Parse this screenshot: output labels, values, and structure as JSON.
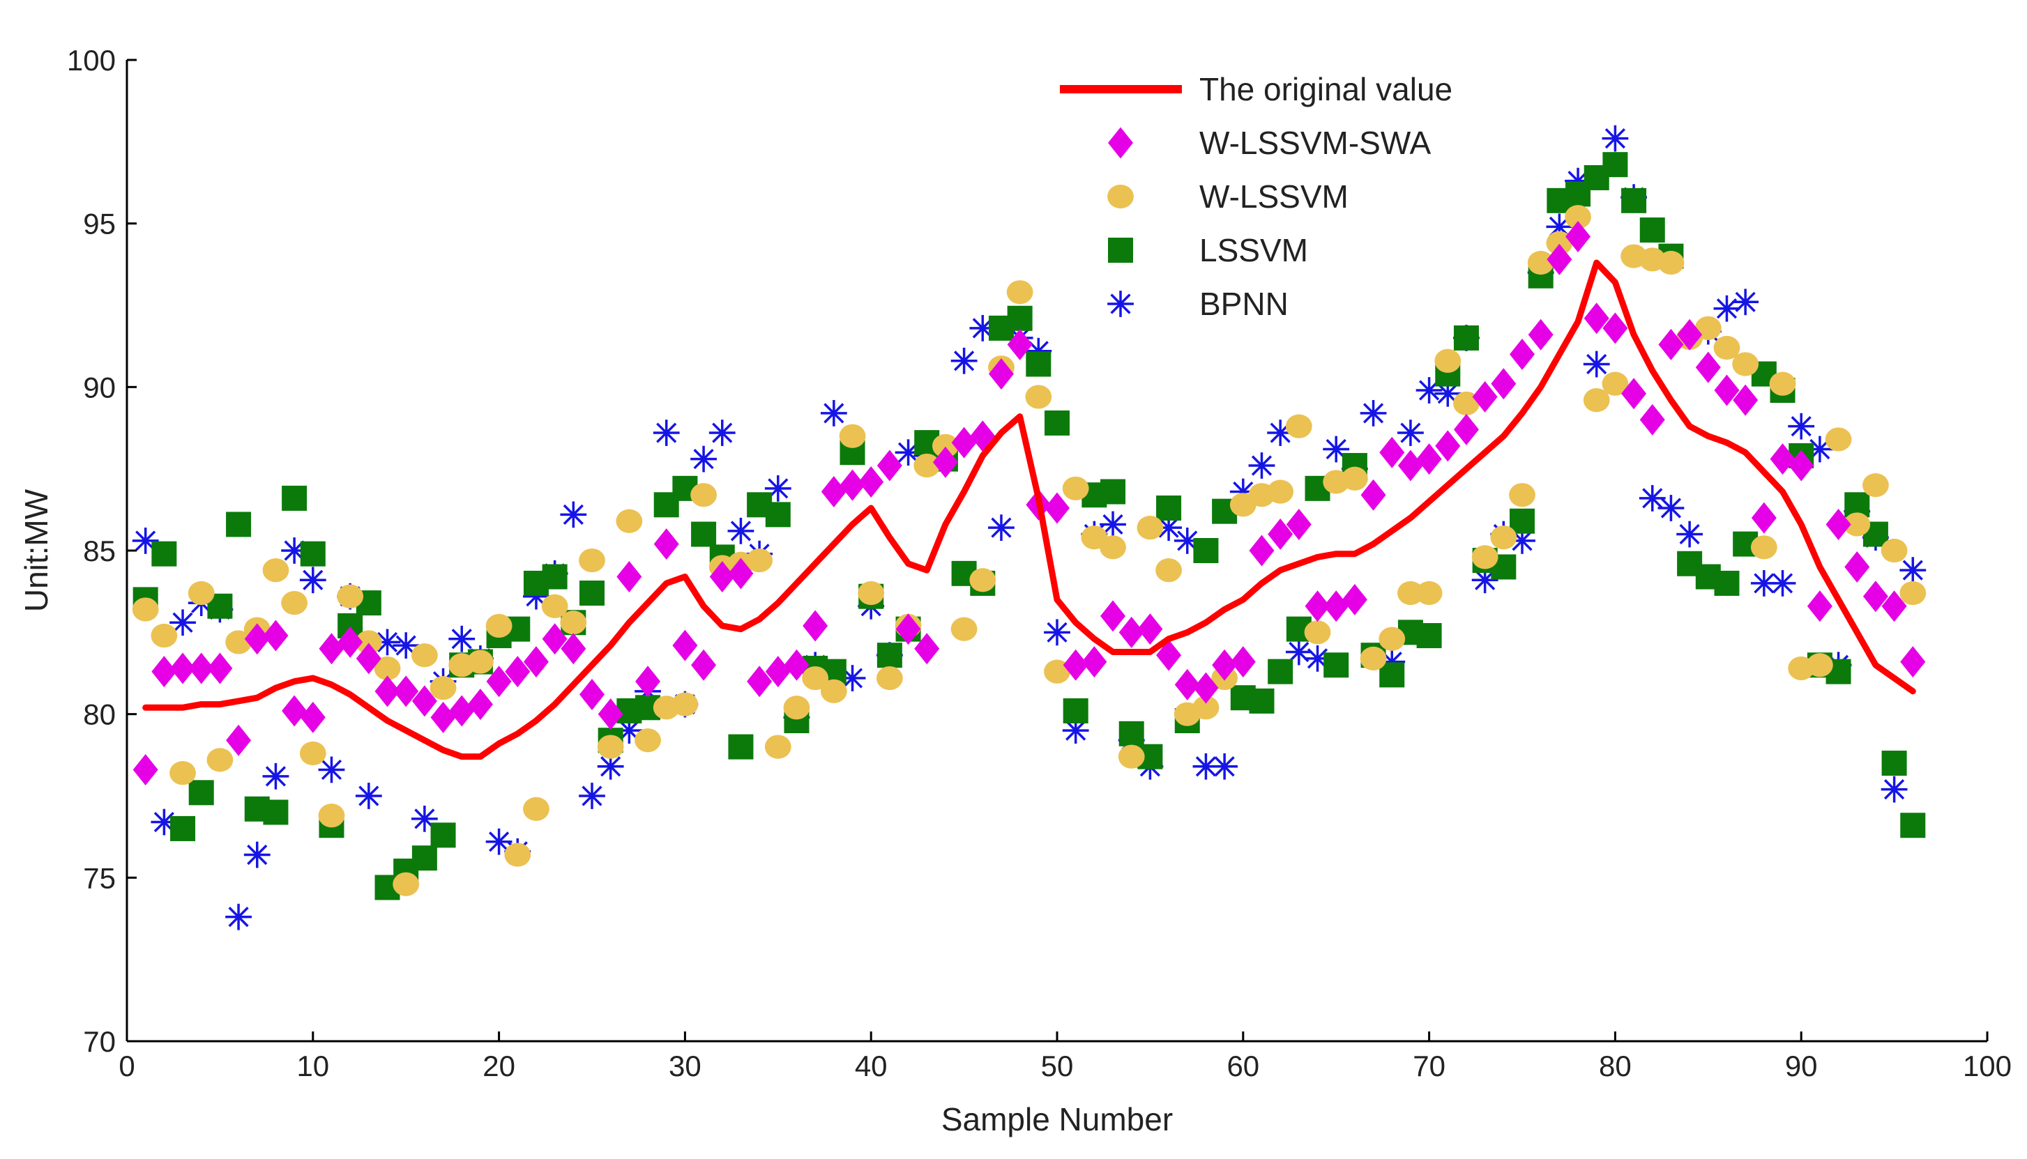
{
  "chart_data": {
    "type": "line+scatter",
    "title": "",
    "xlabel": "Sample Number",
    "ylabel": "Unit:MW",
    "xlim": [
      0,
      100
    ],
    "ylim": [
      70,
      100
    ],
    "xticks": [
      0,
      10,
      20,
      30,
      40,
      50,
      60,
      70,
      80,
      90,
      100
    ],
    "yticks": [
      70,
      75,
      80,
      85,
      90,
      95,
      100
    ],
    "legend_position": "top-center",
    "series": [
      {
        "name": "The original value",
        "style": "line",
        "color": "#ff0000",
        "x": [
          1,
          2,
          3,
          4,
          5,
          6,
          7,
          8,
          9,
          10,
          11,
          12,
          13,
          14,
          15,
          16,
          17,
          18,
          19,
          20,
          21,
          22,
          23,
          24,
          25,
          26,
          27,
          28,
          29,
          30,
          31,
          32,
          33,
          34,
          35,
          36,
          37,
          38,
          39,
          40,
          41,
          42,
          43,
          44,
          45,
          46,
          47,
          48,
          49,
          50,
          51,
          52,
          53,
          54,
          55,
          56,
          57,
          58,
          59,
          60,
          61,
          62,
          63,
          64,
          65,
          66,
          67,
          68,
          69,
          70,
          71,
          72,
          73,
          74,
          75,
          76,
          77,
          78,
          79,
          80,
          81,
          82,
          83,
          84,
          85,
          86,
          87,
          88,
          89,
          90,
          91,
          92,
          93,
          94,
          95,
          96
        ],
        "y": [
          80.2,
          80.2,
          80.2,
          80.3,
          80.3,
          80.4,
          80.5,
          80.8,
          81.0,
          81.1,
          80.9,
          80.6,
          80.2,
          79.8,
          79.5,
          79.2,
          78.9,
          78.7,
          78.7,
          79.1,
          79.4,
          79.8,
          80.3,
          80.9,
          81.5,
          82.1,
          82.8,
          83.4,
          84.0,
          84.2,
          83.3,
          82.7,
          82.6,
          82.9,
          83.4,
          84.0,
          84.6,
          85.2,
          85.8,
          86.3,
          85.4,
          84.6,
          84.4,
          85.8,
          86.8,
          87.9,
          88.6,
          89.1,
          86.6,
          83.5,
          82.8,
          82.3,
          81.9,
          81.9,
          81.9,
          82.3,
          82.5,
          82.8,
          83.2,
          83.5,
          84.0,
          84.4,
          84.6,
          84.8,
          84.9,
          84.9,
          85.2,
          85.6,
          86.0,
          86.5,
          87.0,
          87.5,
          88.0,
          88.5,
          89.2,
          90.0,
          91.0,
          92.0,
          93.8,
          93.2,
          91.6,
          90.5,
          89.6,
          88.8,
          88.5,
          88.3,
          88.0,
          87.4,
          86.8,
          85.8,
          84.5,
          83.5,
          82.5,
          81.5,
          81.1,
          80.7
        ]
      },
      {
        "name": "W-LSSVM-SWA",
        "style": "diamond",
        "color": "#e600e6",
        "x": [
          1,
          2,
          3,
          4,
          5,
          6,
          7,
          8,
          9,
          10,
          11,
          12,
          13,
          14,
          15,
          16,
          17,
          18,
          19,
          20,
          21,
          22,
          23,
          24,
          25,
          26,
          27,
          28,
          29,
          30,
          31,
          32,
          33,
          34,
          35,
          36,
          37,
          38,
          39,
          40,
          41,
          42,
          43,
          44,
          45,
          46,
          47,
          48,
          49,
          50,
          51,
          52,
          53,
          54,
          55,
          56,
          57,
          58,
          59,
          60,
          61,
          62,
          63,
          64,
          65,
          66,
          67,
          68,
          69,
          70,
          71,
          72,
          73,
          74,
          75,
          76,
          77,
          78,
          79,
          80,
          81,
          82,
          83,
          84,
          85,
          86,
          87,
          88,
          89,
          90,
          91,
          92,
          93,
          94,
          95,
          96
        ],
        "y": [
          78.3,
          81.3,
          81.4,
          81.4,
          81.4,
          79.2,
          82.3,
          82.4,
          80.1,
          79.9,
          82.0,
          82.2,
          81.7,
          80.7,
          80.7,
          80.4,
          79.9,
          80.1,
          80.3,
          81.0,
          81.3,
          81.6,
          82.3,
          82.0,
          80.6,
          80.0,
          84.2,
          81.0,
          85.2,
          82.1,
          81.5,
          84.2,
          84.3,
          81.0,
          81.3,
          81.5,
          82.7,
          86.8,
          87.0,
          87.1,
          87.6,
          82.6,
          82.0,
          87.7,
          88.3,
          88.5,
          90.4,
          91.3,
          86.4,
          86.3,
          81.5,
          81.6,
          83.0,
          82.5,
          82.6,
          81.8,
          80.9,
          80.8,
          81.5,
          81.6,
          85.0,
          85.5,
          85.8,
          83.3,
          83.3,
          83.5,
          86.7,
          88.0,
          87.6,
          87.8,
          88.2,
          88.7,
          89.7,
          90.1,
          91.0,
          91.6,
          93.9,
          94.6,
          92.1,
          91.8,
          89.8,
          89.0,
          91.3,
          91.6,
          90.6,
          89.9,
          89.6,
          86.0,
          87.8,
          87.6,
          83.3,
          85.8,
          84.5,
          83.6,
          83.3,
          81.6
        ]
      },
      {
        "name": "W-LSSVM",
        "style": "circle",
        "color": "#ebc152",
        "x": [
          1,
          2,
          3,
          4,
          5,
          6,
          7,
          8,
          9,
          10,
          11,
          12,
          13,
          14,
          15,
          16,
          17,
          18,
          19,
          20,
          21,
          22,
          23,
          24,
          25,
          26,
          27,
          28,
          29,
          30,
          31,
          32,
          33,
          34,
          35,
          36,
          37,
          38,
          39,
          40,
          41,
          42,
          43,
          44,
          45,
          46,
          47,
          48,
          49,
          50,
          51,
          52,
          53,
          54,
          55,
          56,
          57,
          58,
          59,
          60,
          61,
          62,
          63,
          64,
          65,
          66,
          67,
          68,
          69,
          70,
          71,
          72,
          73,
          74,
          75,
          76,
          77,
          78,
          79,
          80,
          81,
          82,
          83,
          84,
          85,
          86,
          87,
          88,
          89,
          90,
          91,
          92,
          93,
          94,
          95,
          96
        ],
        "y": [
          83.2,
          82.4,
          78.2,
          83.7,
          78.6,
          82.2,
          82.6,
          84.4,
          83.4,
          78.8,
          76.9,
          83.6,
          82.2,
          81.4,
          74.8,
          81.8,
          80.8,
          81.5,
          81.6,
          82.7,
          75.7,
          77.1,
          83.3,
          82.8,
          84.7,
          79.0,
          85.9,
          79.2,
          80.2,
          80.3,
          86.7,
          84.5,
          84.6,
          84.7,
          79.0,
          80.2,
          81.1,
          80.7,
          88.5,
          83.7,
          81.1,
          82.7,
          87.6,
          88.2,
          82.6,
          84.1,
          90.6,
          92.9,
          89.7,
          81.3,
          86.9,
          85.4,
          85.1,
          78.7,
          85.7,
          84.4,
          80.0,
          80.2,
          81.1,
          86.4,
          86.7,
          86.8,
          88.8,
          82.5,
          87.1,
          87.2,
          81.7,
          82.3,
          83.7,
          83.7,
          90.8,
          89.5,
          84.8,
          85.4,
          86.7,
          93.8,
          94.4,
          95.2,
          89.6,
          90.1,
          94.0,
          93.9,
          93.8,
          91.5,
          91.8,
          91.2,
          90.7,
          85.1,
          90.1,
          81.4,
          81.5,
          88.4,
          85.8,
          87.0,
          85.0,
          83.7
        ]
      },
      {
        "name": "LSSVM",
        "style": "square",
        "color": "#0b7a0b",
        "x": [
          1,
          2,
          3,
          4,
          5,
          6,
          7,
          8,
          9,
          10,
          11,
          12,
          13,
          14,
          15,
          16,
          17,
          18,
          19,
          20,
          21,
          22,
          23,
          24,
          25,
          26,
          27,
          28,
          29,
          30,
          31,
          32,
          33,
          34,
          35,
          36,
          37,
          38,
          39,
          40,
          41,
          42,
          43,
          44,
          45,
          46,
          47,
          48,
          49,
          50,
          51,
          52,
          53,
          54,
          55,
          56,
          57,
          58,
          59,
          60,
          61,
          62,
          63,
          64,
          65,
          66,
          67,
          68,
          69,
          70,
          71,
          72,
          73,
          74,
          75,
          76,
          77,
          78,
          79,
          80,
          81,
          82,
          83,
          84,
          85,
          86,
          87,
          88,
          89,
          90,
          91,
          92,
          93,
          94,
          95,
          96
        ],
        "y": [
          83.5,
          84.9,
          76.5,
          77.6,
          83.3,
          85.8,
          77.1,
          77.0,
          86.6,
          84.9,
          76.6,
          82.7,
          83.4,
          74.7,
          75.2,
          75.6,
          76.3,
          81.5,
          81.6,
          82.4,
          82.6,
          84.0,
          84.2,
          82.8,
          83.7,
          79.2,
          80.1,
          80.2,
          86.4,
          86.9,
          85.5,
          84.8,
          79.0,
          86.4,
          86.1,
          79.8,
          81.4,
          81.3,
          88.0,
          83.6,
          81.8,
          82.6,
          88.3,
          87.8,
          84.3,
          84.0,
          91.8,
          92.1,
          90.7,
          88.9,
          80.1,
          86.7,
          86.8,
          79.4,
          78.7,
          86.3,
          79.8,
          85.0,
          86.2,
          80.5,
          80.4,
          81.3,
          82.6,
          86.9,
          81.5,
          87.6,
          81.8,
          81.2,
          82.5,
          82.4,
          90.4,
          91.5,
          84.7,
          84.5,
          85.9,
          93.4,
          95.7,
          95.9,
          96.4,
          96.8,
          95.7,
          94.8,
          94.0,
          84.6,
          84.2,
          84.0,
          85.2,
          90.4,
          89.9,
          87.9,
          81.5,
          81.3,
          86.4,
          85.5,
          78.5,
          76.6
        ]
      },
      {
        "name": "BPNN",
        "style": "asterisk",
        "color": "#1515e6",
        "x": [
          1,
          2,
          3,
          4,
          5,
          6,
          7,
          8,
          9,
          10,
          11,
          12,
          13,
          14,
          15,
          16,
          17,
          18,
          19,
          20,
          21,
          22,
          23,
          24,
          25,
          26,
          27,
          28,
          29,
          30,
          31,
          32,
          33,
          34,
          35,
          36,
          37,
          38,
          39,
          40,
          41,
          42,
          43,
          44,
          45,
          46,
          47,
          48,
          49,
          50,
          51,
          52,
          53,
          54,
          55,
          56,
          57,
          58,
          59,
          60,
          61,
          62,
          63,
          64,
          65,
          66,
          67,
          68,
          69,
          70,
          71,
          72,
          73,
          74,
          75,
          76,
          77,
          78,
          79,
          80,
          81,
          82,
          83,
          84,
          85,
          86,
          87,
          88,
          89,
          90,
          91,
          92,
          93,
          94,
          95,
          96
        ],
        "y": [
          85.3,
          76.7,
          82.8,
          83.4,
          83.2,
          73.8,
          75.7,
          78.1,
          85.0,
          84.1,
          78.3,
          83.6,
          77.5,
          82.2,
          82.1,
          76.8,
          81.0,
          82.3,
          81.7,
          76.1,
          75.8,
          83.6,
          84.3,
          86.1,
          77.5,
          78.4,
          79.5,
          80.7,
          88.6,
          80.3,
          87.8,
          88.6,
          85.6,
          84.9,
          86.9,
          79.9,
          81.5,
          89.2,
          81.1,
          83.3,
          81.8,
          88.0,
          87.9,
          88.1,
          90.8,
          91.8,
          85.7,
          91.5,
          91.1,
          82.5,
          79.5,
          85.5,
          85.8,
          79.2,
          78.4,
          85.7,
          85.3,
          78.4,
          78.4,
          86.8,
          87.6,
          88.6,
          81.9,
          81.7,
          88.1,
          87.5,
          89.2,
          81.6,
          88.6,
          89.9,
          89.8,
          91.5,
          84.1,
          85.5,
          85.3,
          93.5,
          94.9,
          96.3,
          90.7,
          97.6,
          95.8,
          86.6,
          86.3,
          85.5,
          91.7,
          92.4,
          92.6,
          84.0,
          84.0,
          88.8,
          88.1,
          81.5,
          86.2,
          85.4,
          77.7,
          84.4
        ]
      }
    ]
  }
}
